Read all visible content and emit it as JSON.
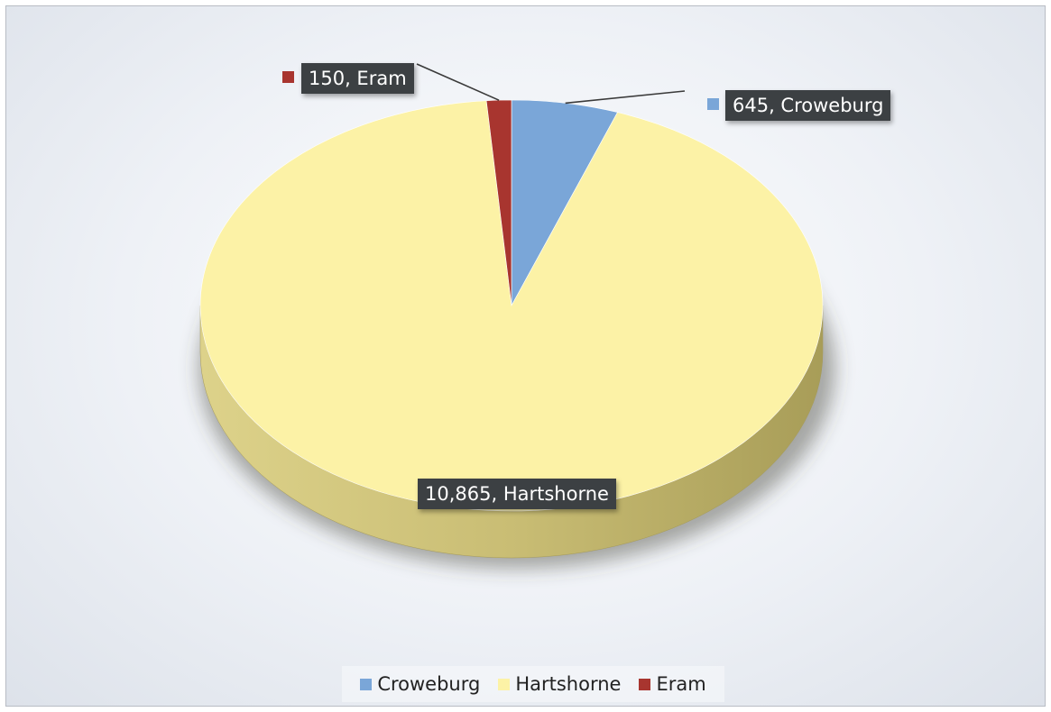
{
  "chart_data": {
    "type": "pie",
    "three_d": true,
    "slices": [
      {
        "name": "Croweburg",
        "value": 645,
        "label": "645, Croweburg",
        "color": "#7aa6d8"
      },
      {
        "name": "Hartshorne",
        "value": 10865,
        "label": "10,865, Hartshorne",
        "color": "#fcf2a6"
      },
      {
        "name": "Eram",
        "value": 150,
        "label": "150, Eram",
        "color": "#a8352f"
      }
    ],
    "legend": {
      "position": "bottom",
      "entries": [
        "Croweburg",
        "Hartshorne",
        "Eram"
      ]
    }
  }
}
